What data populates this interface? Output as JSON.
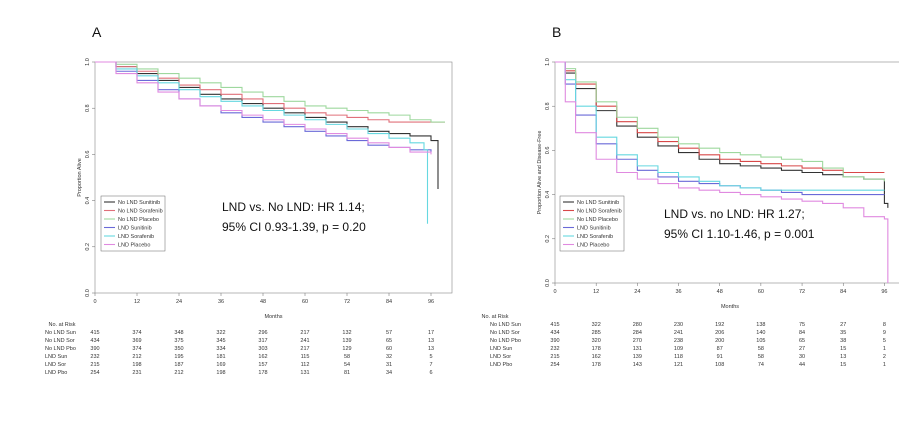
{
  "chart_data": [
    {
      "type": "line",
      "panel": "A",
      "xlabel": "Months",
      "ylabel": "Proportion Alive",
      "xlim": [
        0,
        102
      ],
      "ylim": [
        0,
        1
      ],
      "x_ticks": [
        0,
        12,
        24,
        36,
        48,
        60,
        72,
        84,
        96
      ],
      "y_ticks": [
        "0.0",
        "0.2",
        "0.4",
        "0.6",
        "0.8",
        "1.0"
      ],
      "legend_position": "center-left",
      "annotation": [
        "LND vs. No LND: HR 1.14;",
        "95% CI 0.93-1.39, p = 0.20"
      ],
      "series": [
        {
          "name": "No LND Sunitinib",
          "color": "#333333",
          "x": [
            0,
            6,
            12,
            18,
            24,
            30,
            36,
            42,
            48,
            54,
            60,
            66,
            72,
            78,
            84,
            90,
            93,
            96,
            98
          ],
          "y": [
            1.0,
            0.98,
            0.95,
            0.92,
            0.89,
            0.86,
            0.84,
            0.82,
            0.8,
            0.78,
            0.76,
            0.74,
            0.72,
            0.7,
            0.69,
            0.68,
            0.68,
            0.66,
            0.45
          ]
        },
        {
          "name": "No LND Sorafenib",
          "color": "#e0707a",
          "x": [
            0,
            6,
            12,
            18,
            24,
            30,
            36,
            42,
            48,
            54,
            60,
            66,
            72,
            78,
            84,
            90,
            96,
            100
          ],
          "y": [
            1.0,
            0.98,
            0.96,
            0.93,
            0.9,
            0.88,
            0.86,
            0.84,
            0.82,
            0.8,
            0.78,
            0.77,
            0.76,
            0.75,
            0.74,
            0.74,
            0.74,
            0.74
          ]
        },
        {
          "name": "No LND Placebo",
          "color": "#9ed89e",
          "x": [
            0,
            6,
            12,
            18,
            24,
            30,
            36,
            42,
            48,
            54,
            60,
            66,
            72,
            78,
            84,
            90,
            96,
            100
          ],
          "y": [
            1.0,
            0.99,
            0.97,
            0.95,
            0.93,
            0.91,
            0.89,
            0.87,
            0.85,
            0.83,
            0.81,
            0.8,
            0.79,
            0.78,
            0.77,
            0.75,
            0.74,
            0.74
          ]
        },
        {
          "name": "LND Sunitinib",
          "color": "#6a6ad8",
          "x": [
            0,
            6,
            12,
            18,
            24,
            30,
            36,
            42,
            48,
            54,
            60,
            66,
            72,
            78,
            84,
            90,
            96
          ],
          "y": [
            1.0,
            0.96,
            0.92,
            0.88,
            0.84,
            0.81,
            0.78,
            0.76,
            0.74,
            0.72,
            0.7,
            0.68,
            0.66,
            0.64,
            0.63,
            0.62,
            0.61
          ]
        },
        {
          "name": "LND Sorafenib",
          "color": "#66d8e0",
          "x": [
            0,
            6,
            12,
            18,
            24,
            30,
            36,
            42,
            48,
            54,
            60,
            66,
            72,
            78,
            84,
            90,
            94,
            95
          ],
          "y": [
            1.0,
            0.97,
            0.94,
            0.91,
            0.88,
            0.85,
            0.83,
            0.81,
            0.79,
            0.77,
            0.75,
            0.73,
            0.71,
            0.69,
            0.67,
            0.65,
            0.62,
            0.3
          ]
        },
        {
          "name": "LND Placebo",
          "color": "#e08ae0",
          "x": [
            0,
            6,
            12,
            18,
            24,
            30,
            36,
            42,
            48,
            54,
            60,
            66,
            72,
            78,
            84,
            90,
            96
          ],
          "y": [
            1.0,
            0.95,
            0.91,
            0.87,
            0.84,
            0.81,
            0.79,
            0.77,
            0.75,
            0.73,
            0.71,
            0.69,
            0.67,
            0.65,
            0.63,
            0.61,
            0.6
          ]
        }
      ],
      "risk_table": {
        "title": "No. at Risk",
        "rows": [
          {
            "label": "No LND Sun",
            "values": [
              "415",
              "374",
              "348",
              "322",
              "296",
              "217",
              "132",
              "57",
              "17"
            ]
          },
          {
            "label": "No LND Sor",
            "values": [
              "434",
              "369",
              "375",
              "345",
              "317",
              "241",
              "139",
              "65",
              "13"
            ]
          },
          {
            "label": "No LND Pbo",
            "values": [
              "390",
              "374",
              "350",
              "334",
              "303",
              "217",
              "129",
              "60",
              "13"
            ]
          },
          {
            "label": "LND Sun",
            "values": [
              "232",
              "212",
              "195",
              "181",
              "162",
              "115",
              "58",
              "32",
              "5"
            ]
          },
          {
            "label": "LND Sor",
            "values": [
              "215",
              "198",
              "187",
              "169",
              "157",
              "112",
              "54",
              "31",
              "7"
            ]
          },
          {
            "label": "LND Pbo",
            "values": [
              "254",
              "231",
              "212",
              "198",
              "178",
              "131",
              "81",
              "34",
              "6"
            ]
          }
        ]
      }
    },
    {
      "type": "line",
      "panel": "B",
      "xlabel": "Months",
      "ylabel": "Proportion Alive and Disease-Free",
      "xlim": [
        0,
        102
      ],
      "ylim": [
        0,
        1
      ],
      "x_ticks": [
        0,
        12,
        24,
        36,
        48,
        60,
        72,
        84,
        96
      ],
      "y_ticks": [
        "0.0",
        "0.2",
        "0.4",
        "0.6",
        "0.8",
        "1.0"
      ],
      "legend_position": "center-left",
      "annotation": [
        "LND vs. no LND: HR 1.27;",
        "95% CI 1.10-1.46, p = 0.001"
      ],
      "series": [
        {
          "name": "No LND Sunitinib",
          "color": "#333333",
          "x": [
            0,
            3,
            6,
            12,
            18,
            24,
            30,
            36,
            42,
            48,
            54,
            60,
            66,
            72,
            78,
            84,
            90,
            96,
            97
          ],
          "y": [
            1.0,
            0.95,
            0.88,
            0.78,
            0.71,
            0.66,
            0.62,
            0.59,
            0.56,
            0.54,
            0.53,
            0.52,
            0.51,
            0.5,
            0.49,
            0.48,
            0.47,
            0.36,
            0.34
          ]
        },
        {
          "name": "No LND Sorafenib",
          "color": "#d84848",
          "x": [
            0,
            3,
            6,
            12,
            18,
            24,
            30,
            36,
            42,
            48,
            54,
            60,
            66,
            72,
            78,
            84,
            90,
            96
          ],
          "y": [
            1.0,
            0.96,
            0.9,
            0.8,
            0.73,
            0.68,
            0.64,
            0.61,
            0.58,
            0.56,
            0.55,
            0.54,
            0.53,
            0.52,
            0.51,
            0.5,
            0.5,
            0.5
          ]
        },
        {
          "name": "No LND Placebo",
          "color": "#9ed89e",
          "x": [
            0,
            3,
            6,
            12,
            18,
            24,
            30,
            36,
            42,
            48,
            54,
            60,
            66,
            72,
            78,
            84,
            90,
            96
          ],
          "y": [
            1.0,
            0.97,
            0.91,
            0.82,
            0.75,
            0.7,
            0.66,
            0.63,
            0.61,
            0.59,
            0.58,
            0.57,
            0.56,
            0.55,
            0.52,
            0.48,
            0.47,
            0.46
          ]
        },
        {
          "name": "LND Sunitinib",
          "color": "#6a6ad8",
          "x": [
            0,
            3,
            6,
            12,
            18,
            24,
            30,
            36,
            42,
            48,
            54,
            60,
            66,
            72,
            78,
            84,
            90,
            96
          ],
          "y": [
            1.0,
            0.9,
            0.76,
            0.63,
            0.56,
            0.51,
            0.48,
            0.46,
            0.45,
            0.44,
            0.43,
            0.42,
            0.41,
            0.4,
            0.4,
            0.4,
            0.4,
            0.4
          ]
        },
        {
          "name": "LND Sorafenib",
          "color": "#66d8e0",
          "x": [
            0,
            3,
            6,
            12,
            18,
            24,
            30,
            36,
            42,
            48,
            54,
            60,
            66,
            72,
            78,
            84,
            90,
            96
          ],
          "y": [
            1.0,
            0.92,
            0.8,
            0.66,
            0.58,
            0.53,
            0.5,
            0.48,
            0.46,
            0.44,
            0.43,
            0.42,
            0.42,
            0.42,
            0.42,
            0.42,
            0.42,
            0.42
          ]
        },
        {
          "name": "LND Placebo",
          "color": "#e08ae0",
          "x": [
            0,
            3,
            6,
            12,
            18,
            24,
            30,
            36,
            42,
            48,
            54,
            60,
            66,
            72,
            78,
            84,
            90,
            96,
            97
          ],
          "y": [
            1.0,
            0.82,
            0.68,
            0.56,
            0.5,
            0.47,
            0.45,
            0.43,
            0.42,
            0.41,
            0.4,
            0.39,
            0.38,
            0.37,
            0.36,
            0.34,
            0.3,
            0.29,
            0.0
          ]
        }
      ],
      "risk_table": {
        "title": "No. at Risk",
        "rows": [
          {
            "label": "No LND Sun",
            "values": [
              "415",
              "322",
              "280",
              "230",
              "192",
              "138",
              "75",
              "27",
              "8"
            ]
          },
          {
            "label": "No LND Sor",
            "values": [
              "434",
              "285",
              "284",
              "241",
              "206",
              "140",
              "84",
              "35",
              "9"
            ]
          },
          {
            "label": "No LND Pbo",
            "values": [
              "390",
              "320",
              "270",
              "238",
              "200",
              "105",
              "65",
              "38",
              "5"
            ]
          },
          {
            "label": "LND Sun",
            "values": [
              "232",
              "178",
              "131",
              "109",
              "87",
              "58",
              "27",
              "15",
              "1"
            ]
          },
          {
            "label": "LND Sor",
            "values": [
              "215",
              "162",
              "139",
              "118",
              "91",
              "58",
              "30",
              "13",
              "2"
            ]
          },
          {
            "label": "LND Pbo",
            "values": [
              "254",
              "178",
              "143",
              "121",
              "108",
              "74",
              "44",
              "15",
              "1"
            ]
          }
        ]
      }
    }
  ]
}
